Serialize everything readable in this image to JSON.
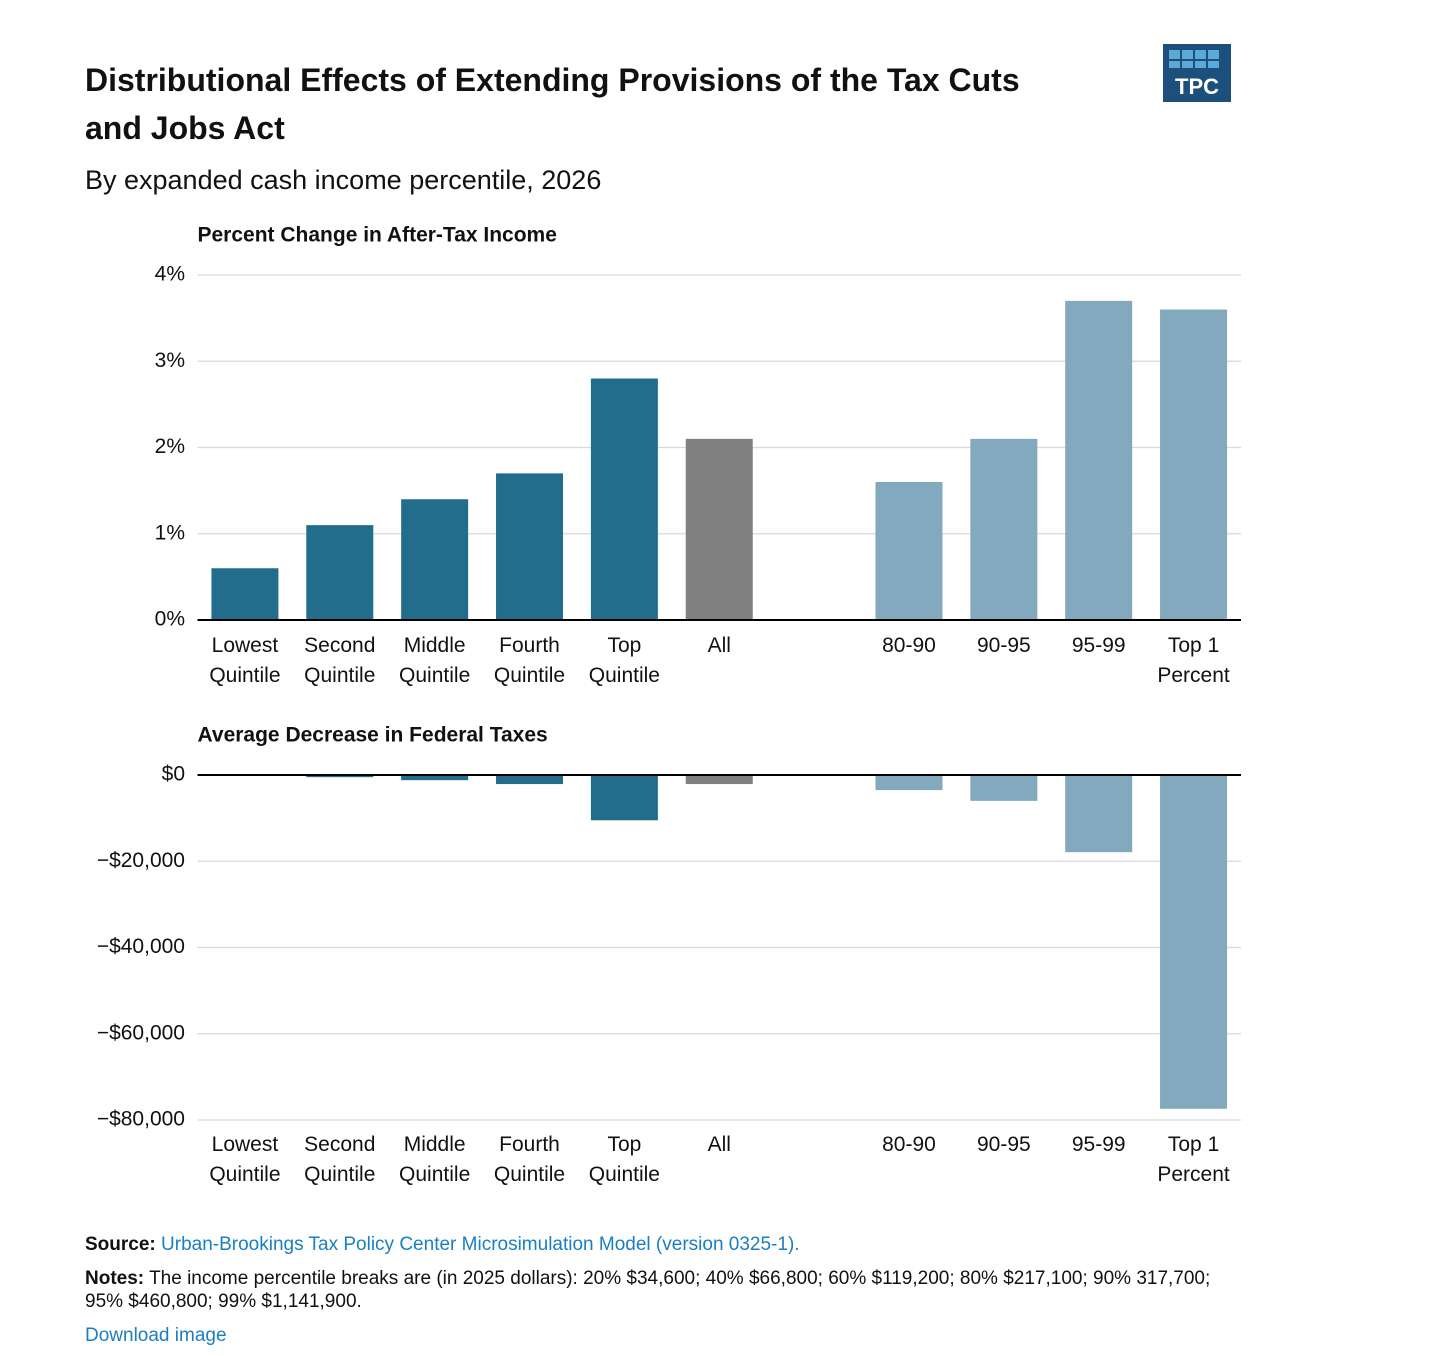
{
  "logo": "TPC",
  "title": "Distributional Effects of Extending Provisions of the Tax Cuts and Jobs Act",
  "subtitle": "By expanded cash income percentile, 2026",
  "chart_data": [
    {
      "type": "bar",
      "title": "Percent Change in After-Tax Income",
      "categories": [
        "Lowest Quintile",
        "Second Quintile",
        "Middle Quintile",
        "Fourth Quintile",
        "Top Quintile",
        "All",
        null,
        "80-90",
        "90-95",
        "95-99",
        "Top 1 Percent"
      ],
      "values": [
        0.6,
        1.1,
        1.4,
        1.7,
        2.8,
        2.1,
        null,
        1.6,
        2.1,
        3.7,
        3.6
      ],
      "colors": [
        "#236d8c",
        "#236d8c",
        "#236d8c",
        "#236d8c",
        "#236d8c",
        "#808080",
        null,
        "#82a9bd",
        "#82a9bd",
        "#82a9bd",
        "#82a9bd"
      ],
      "ylim": [
        0,
        4
      ],
      "yticks": [
        {
          "value": 0,
          "label": "0%"
        },
        {
          "value": 1,
          "label": "1%"
        },
        {
          "value": 2,
          "label": "2%"
        },
        {
          "value": 3,
          "label": "3%"
        },
        {
          "value": 4,
          "label": "4%"
        }
      ],
      "grid": true
    },
    {
      "type": "bar",
      "title": "Average Decrease in Federal Taxes",
      "categories": [
        "Lowest Quintile",
        "Second Quintile",
        "Middle Quintile",
        "Fourth Quintile",
        "Top Quintile",
        "All",
        null,
        "80-90",
        "90-95",
        "95-99",
        "Top 1 Percent"
      ],
      "values": [
        -60,
        -500,
        -1200,
        -2100,
        -10500,
        -2100,
        null,
        -3500,
        -6000,
        -17900,
        -77400
      ],
      "colors": [
        "#236d8c",
        "#236d8c",
        "#236d8c",
        "#236d8c",
        "#236d8c",
        "#808080",
        null,
        "#82a9bd",
        "#82a9bd",
        "#82a9bd",
        "#82a9bd"
      ],
      "ylim": [
        -80000,
        0
      ],
      "yticks": [
        {
          "value": 0,
          "label": "$0"
        },
        {
          "value": -20000,
          "label": "−$20,000"
        },
        {
          "value": -40000,
          "label": "−$40,000"
        },
        {
          "value": -60000,
          "label": "−$60,000"
        },
        {
          "value": -80000,
          "label": "−$80,000"
        }
      ],
      "grid": true
    }
  ],
  "source": {
    "label": "Source:",
    "text": "Urban-Brookings Tax Policy Center Microsimulation Model (version 0325-1)."
  },
  "notes": {
    "label": "Notes:",
    "text": "The income percentile breaks are (in 2025 dollars): 20% $34,600; 40% $66,800; 60% $119,200; 80% $217,100; 90% 317,700; 95% $460,800; 99% $1,141,900."
  },
  "download": "Download image"
}
